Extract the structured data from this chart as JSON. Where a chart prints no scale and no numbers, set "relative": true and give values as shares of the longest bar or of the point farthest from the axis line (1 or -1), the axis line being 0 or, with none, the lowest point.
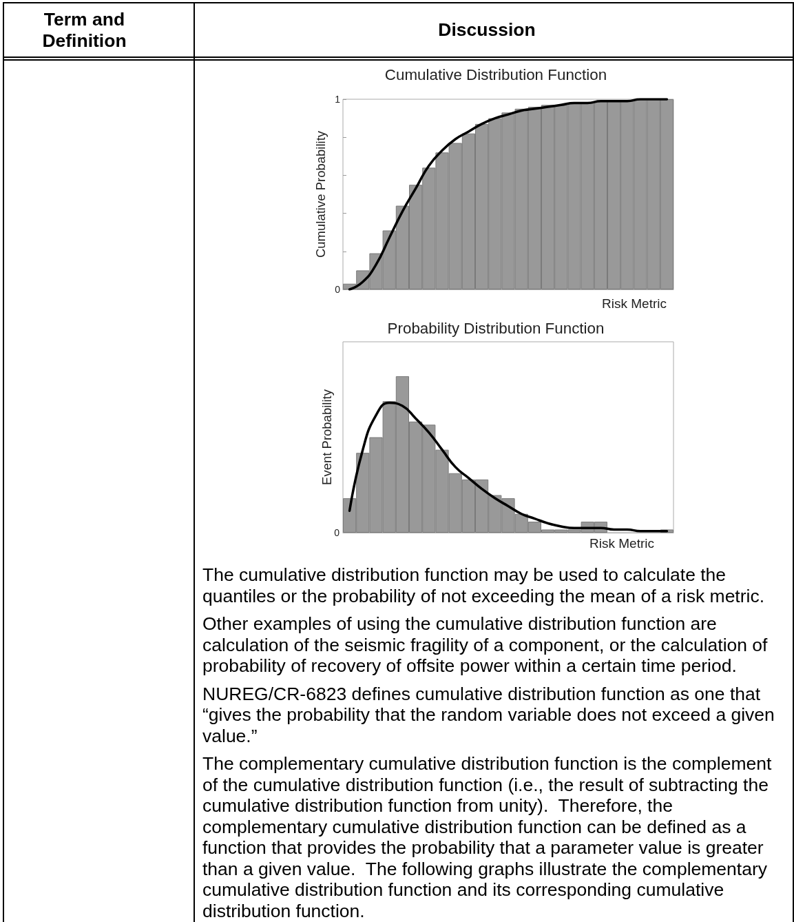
{
  "chart_data": [
    {
      "type": "other",
      "annotations": [
        "Term and Definition",
        "Discussion"
      ]
    },
    {
      "type": "bar",
      "title": "Cumulative Distribution Function",
      "xlabel": "Risk Metric",
      "ylabel": "Cumulative Probability",
      "categories": [
        null,
        null,
        null,
        null,
        null,
        null,
        null,
        null,
        null,
        null,
        null,
        null,
        null,
        null,
        null,
        null,
        null,
        null,
        null,
        null,
        null,
        null,
        null,
        null,
        null
      ],
      "ylim": [
        0,
        1
      ],
      "yticks": [
        0,
        {
          "value": 0.2,
          "label": null
        },
        {
          "value": 0.4,
          "label": null
        },
        {
          "value": 0.6,
          "label": null
        },
        {
          "value": 0.8,
          "label": null
        },
        1
      ],
      "marker": "none",
      "series": [
        {
          "type": "bar",
          "color": "#999999",
          "values": [
            0.03,
            0.1,
            0.19,
            0.31,
            0.44,
            0.55,
            0.64,
            0.72,
            0.77,
            0.82,
            0.87,
            0.9,
            0.93,
            0.95,
            0.96,
            0.97,
            0.97,
            0.98,
            0.98,
            0.99,
            0.99,
            0.99,
            1.0,
            1.0,
            1.0
          ]
        },
        {
          "type": "line",
          "color": "#000000",
          "values": [
            0.0,
            0.04,
            0.13,
            0.27,
            0.41,
            0.53,
            0.65,
            0.73,
            0.79,
            0.83,
            0.87,
            0.9,
            0.92,
            0.94,
            0.95,
            0.96,
            0.97,
            0.98,
            0.98,
            0.99,
            0.99,
            0.99,
            1.0,
            1.0,
            1.0
          ]
        }
      ]
    },
    {
      "type": "bar",
      "title": "Probability Distribution Function",
      "xlabel": "Risk Metric",
      "ylabel": "Event Probability",
      "relative": true,
      "annotations": [
        "0"
      ],
      "categories": [
        null,
        null,
        null,
        null,
        null,
        null,
        null,
        null,
        null,
        null,
        null,
        null,
        null,
        null,
        null,
        null,
        null,
        null,
        null,
        null,
        null,
        null,
        null,
        null,
        null
      ],
      "marker": "none",
      "series": [
        {
          "type": "bar",
          "color": "#999999",
          "values": [
            0.22,
            0.51,
            0.61,
            0.84,
            1,
            0.71,
            0.69,
            0.53,
            0.38,
            0.34,
            0.34,
            0.24,
            0.22,
            0.12,
            0.07,
            0.02,
            0.02,
            0.02,
            0.07,
            0.07,
            0,
            0,
            0,
            0,
            0.02
          ]
        },
        {
          "type": "line",
          "color": "#000000",
          "values": [
            0.14,
            0.53,
            0.75,
            0.83,
            0.81,
            0.73,
            0.64,
            0.53,
            0.42,
            0.35,
            0.28,
            0.22,
            0.17,
            0.12,
            0.09,
            0.06,
            0.04,
            0.03,
            0.03,
            0.03,
            0.02,
            0.02,
            0.01,
            0.01,
            0.01
          ]
        }
      ]
    },
    {
      "type": "other",
      "annotations": [
        "The cumulative distribution function may be used to calculate the quantiles or the probability of not exceeding the mean of a risk metric.",
        "Other examples of using the cumulative distribution function are calculation of the seismic fragility of a component, or the calculation of probability of recovery of offsite power within a certain time period.",
        "NUREG/CR-6823 defines cumulative distribution function as one that “gives the probability that the random variable does not exceed a given value.”",
        "The complementary cumulative distribution function is the complement of the cumulative distribution function (i.e., the result of subtracting the cumulative distribution function from unity).  Therefore, the complementary cumulative distribution function can be defined as a function that provides the probability that a parameter value is greater than a given value.  The following graphs illustrate the complementary cumulative distribution function and its corresponding cumulative distribution function."
      ]
    }
  ]
}
